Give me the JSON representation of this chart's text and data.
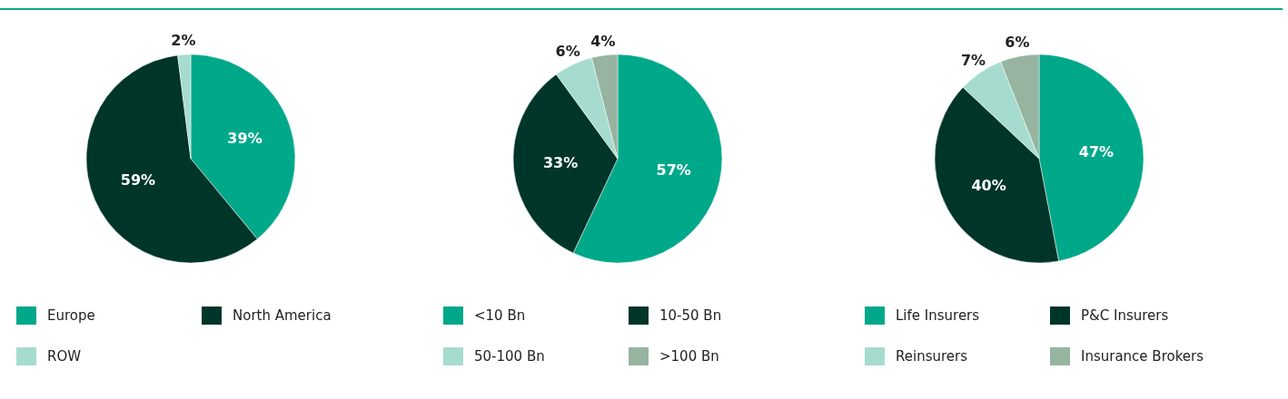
{
  "chart_data": [
    {
      "type": "pie",
      "categories": [
        "Europe",
        "North America",
        "ROW"
      ],
      "values": [
        39,
        59,
        2
      ],
      "colors": [
        "#00a88a",
        "#00352a",
        "#a6dccf"
      ],
      "value_labels": [
        "39%",
        "59%",
        "2%"
      ],
      "legend": "bottom"
    },
    {
      "type": "pie",
      "categories": [
        "<10 Bn",
        "10-50 Bn",
        "50-100 Bn",
        ">100 Bn"
      ],
      "values": [
        57,
        33,
        6,
        4
      ],
      "colors": [
        "#00a88a",
        "#00352a",
        "#a6dccf",
        "#96b4a0"
      ],
      "value_labels": [
        "57%",
        "33%",
        "6%",
        "4%"
      ],
      "legend": "bottom"
    },
    {
      "type": "pie",
      "categories": [
        "Life Insurers",
        "P&C Insurers",
        "Reinsurers",
        "Insurance Brokers"
      ],
      "values": [
        47,
        40,
        7,
        6
      ],
      "colors": [
        "#00a88a",
        "#00352a",
        "#a6dccf",
        "#96b4a0"
      ],
      "value_labels": [
        "47%",
        "40%",
        "7%",
        "6%"
      ],
      "legend": "bottom"
    }
  ]
}
